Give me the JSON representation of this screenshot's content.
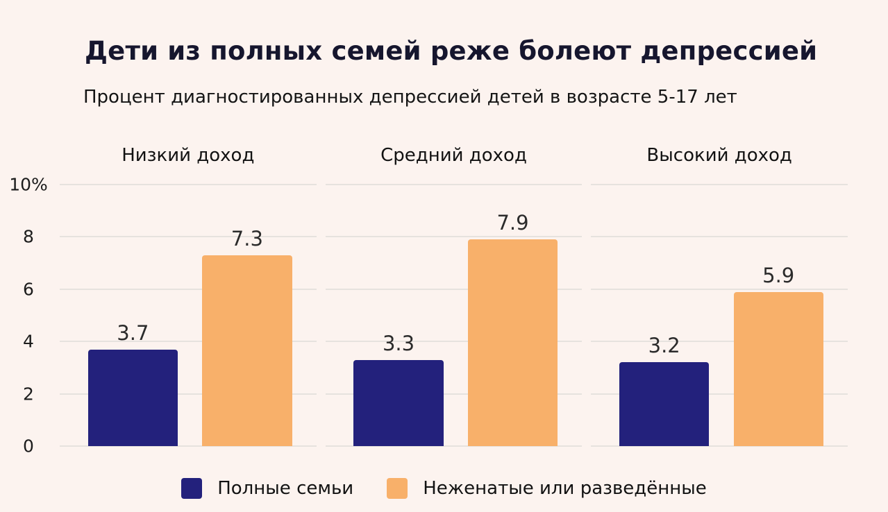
{
  "page": {
    "title": "Дети из полных семей реже болеют депрессией",
    "subtitle": "Процент диагностированных депрессией детей в возрасте 5-17 лет",
    "background_color": "#fcf3ef"
  },
  "chart_data": {
    "type": "bar",
    "title": "Дети из полных семей реже болеют депрессией",
    "subtitle": "Процент диагностированных депрессией детей в возрасте 5-17 лет",
    "groups": [
      {
        "label": "Низкий доход",
        "values": [
          3.7,
          7.3
        ]
      },
      {
        "label": "Средний доход",
        "values": [
          3.3,
          7.9
        ]
      },
      {
        "label": "Высокий доход",
        "values": [
          3.2,
          5.9
        ]
      }
    ],
    "series": [
      {
        "name": "Полные семьи",
        "color": "#23217c"
      },
      {
        "name": "Неженатые или разведённые",
        "color": "#f8b06a"
      }
    ],
    "ylim": [
      0,
      10
    ],
    "yticks": [
      0,
      2,
      4,
      6,
      8,
      10
    ],
    "ytick_labels": [
      "0",
      "2",
      "4",
      "6",
      "8",
      "10%"
    ],
    "grid": true,
    "legend_position": "bottom"
  }
}
